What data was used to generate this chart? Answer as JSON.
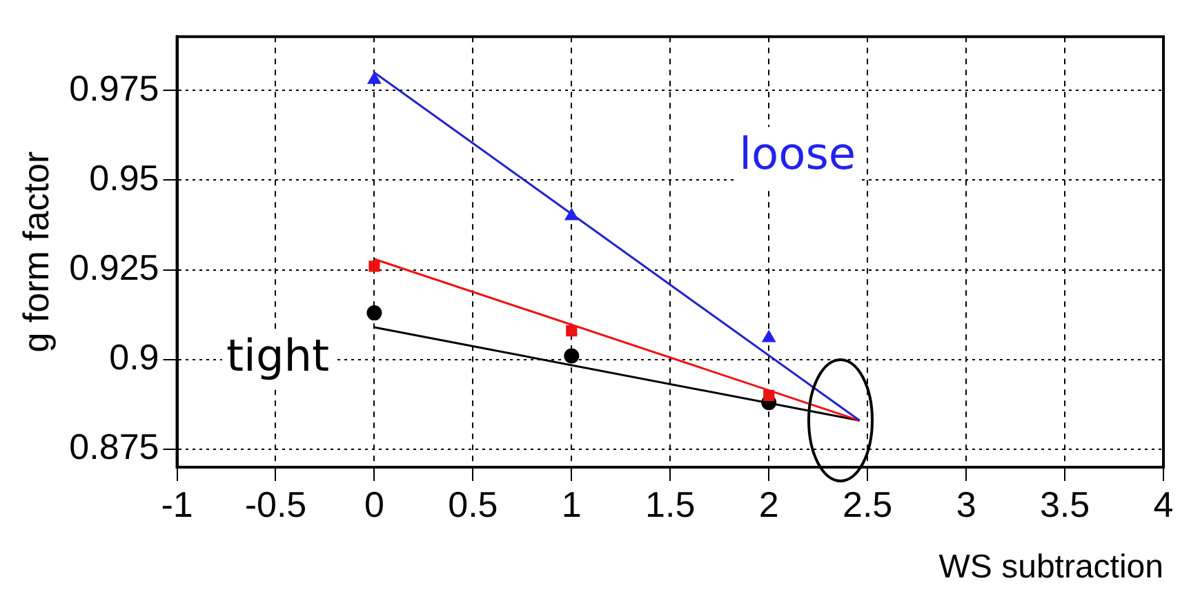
{
  "chart_data": {
    "type": "scatter",
    "xlabel": "WS subtraction",
    "ylabel": "g form factor",
    "xlim": [
      -1,
      4
    ],
    "xticks": [
      -1,
      -0.5,
      0,
      0.5,
      1,
      1.5,
      2,
      2.5,
      3,
      3.5,
      4
    ],
    "ylim": [
      0.87,
      0.99
    ],
    "yticks": [
      0.875,
      0.9,
      0.925,
      0.95,
      0.975
    ],
    "grid": true,
    "legend": false,
    "series": [
      {
        "color": "#2222ee",
        "marker": "triangle",
        "x": [
          0,
          1,
          2
        ],
        "values": [
          0.978,
          0.94,
          0.906
        ]
      },
      {
        "color": "#ee1111",
        "marker": "square",
        "x": [
          0,
          1,
          2
        ],
        "values": [
          0.926,
          0.908,
          0.89
        ]
      },
      {
        "color": "#000000",
        "marker": "circle",
        "x": [
          0,
          1,
          2
        ],
        "values": [
          0.913,
          0.901,
          0.888
        ]
      },
      {
        "type": "line",
        "color": "#2222cc",
        "marker": "none",
        "x": [
          0,
          2.46
        ],
        "values": [
          0.98,
          0.883
        ]
      },
      {
        "type": "line",
        "color": "#ee1111",
        "marker": "none",
        "x": [
          0,
          2.46
        ],
        "values": [
          0.928,
          0.883
        ]
      },
      {
        "type": "line",
        "color": "#000000",
        "marker": "none",
        "x": [
          0,
          2.46
        ],
        "values": [
          0.909,
          0.883
        ]
      }
    ],
    "annotations": [
      "loose",
      "tight"
    ]
  }
}
